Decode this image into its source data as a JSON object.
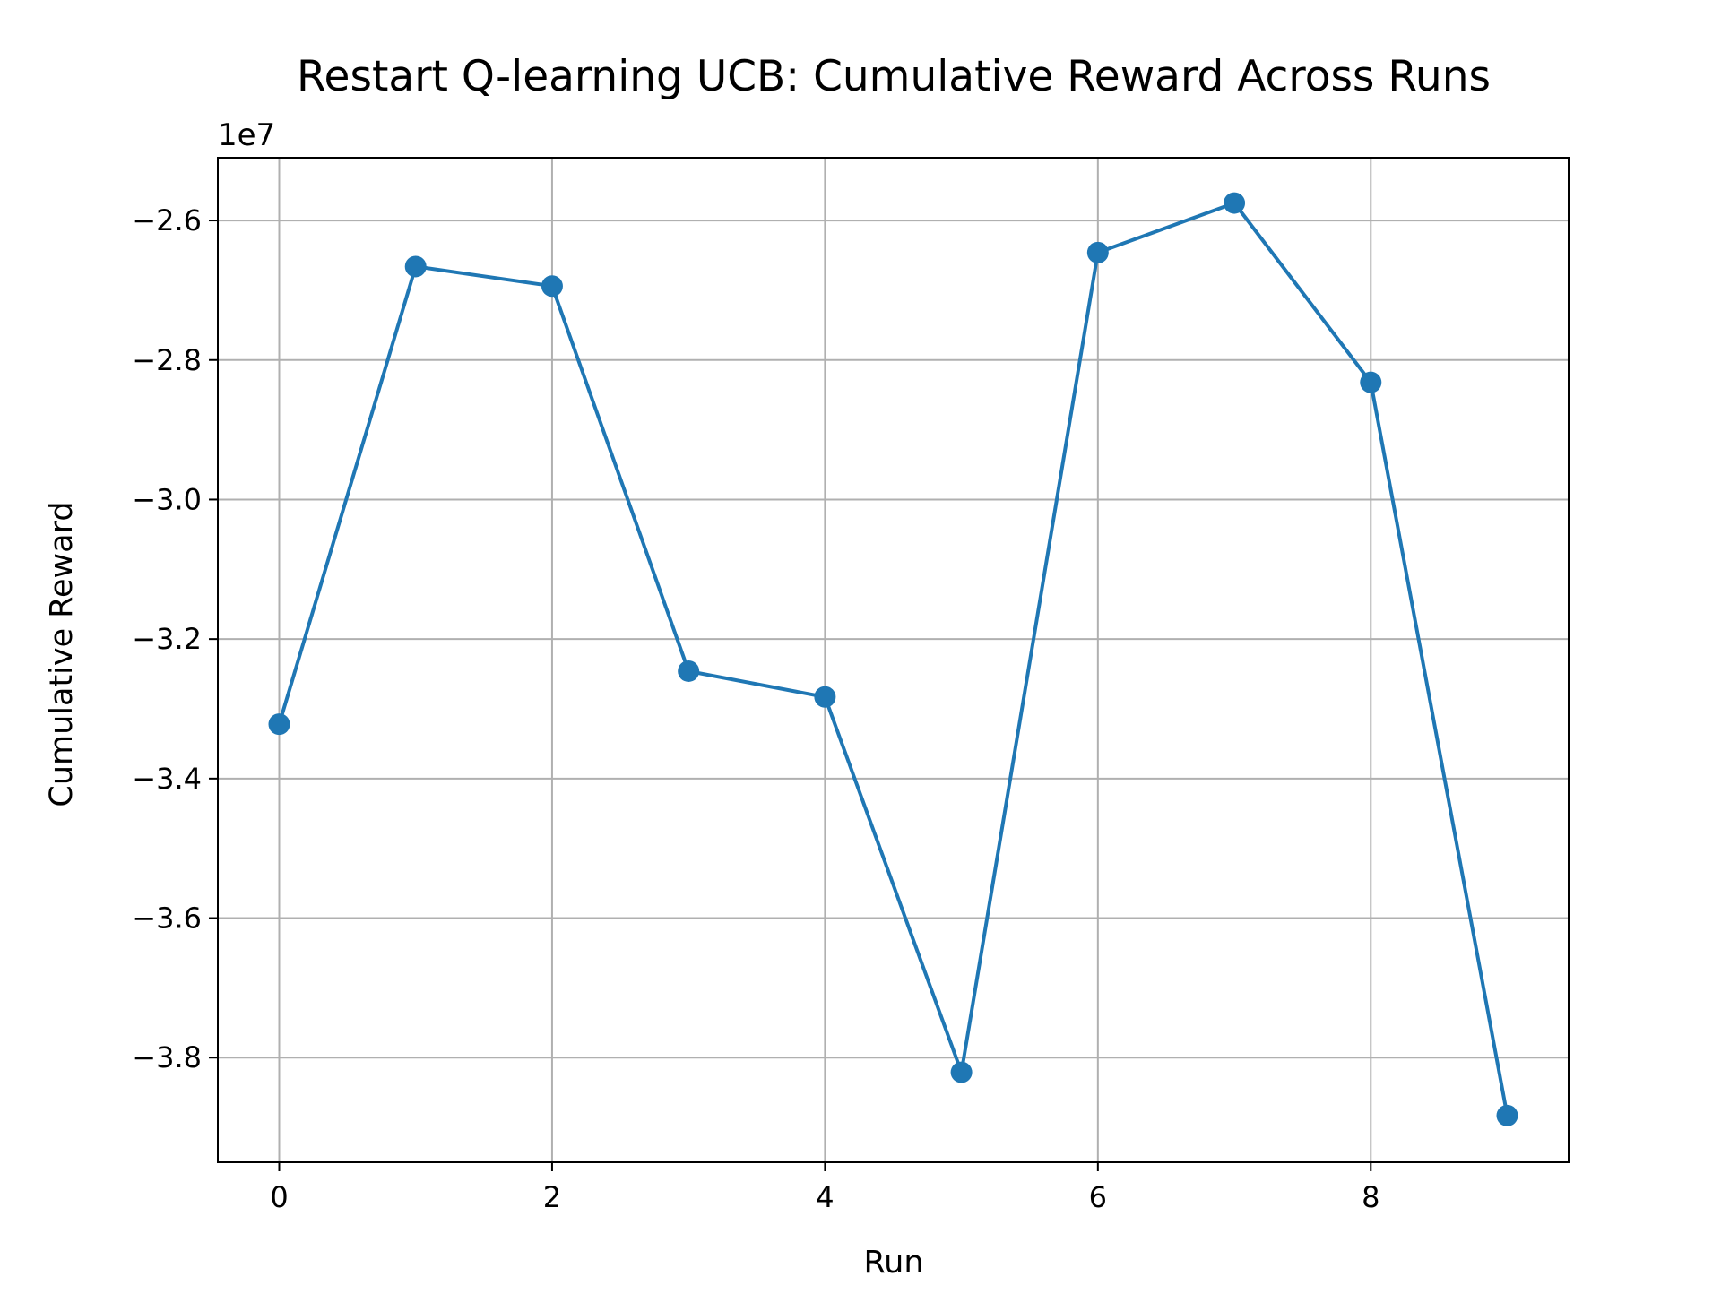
{
  "chart_data": {
    "type": "line",
    "title": "Restart Q-learning UCB: Cumulative Reward Across Runs",
    "xlabel": "Run",
    "ylabel": "Cumulative Reward",
    "y_offset_label": "1e7",
    "y_scale_factor": 10000000,
    "xlim": [
      -0.45,
      9.45
    ],
    "ylim": [
      -3.95,
      -2.51
    ],
    "x_ticks": [
      0,
      2,
      4,
      6,
      8
    ],
    "x_tick_labels": [
      "0",
      "2",
      "4",
      "6",
      "8"
    ],
    "y_ticks": [
      -3.8,
      -3.6,
      -3.4,
      -3.2,
      -3.0,
      -2.8,
      -2.6
    ],
    "y_tick_labels": [
      "−3.8",
      "−3.6",
      "−3.4",
      "−3.2",
      "−3.0",
      "−2.8",
      "−2.6"
    ],
    "grid": true,
    "series": [
      {
        "x": [
          0,
          1,
          2,
          3,
          4,
          5,
          6,
          7,
          8,
          9
        ],
        "values": [
          -3.322,
          -2.666,
          -2.694,
          -3.246,
          -3.283,
          -3.821,
          -2.646,
          -2.575,
          -2.832,
          -3.883
        ],
        "color": "#1f77b4",
        "marker": "circle"
      }
    ]
  }
}
